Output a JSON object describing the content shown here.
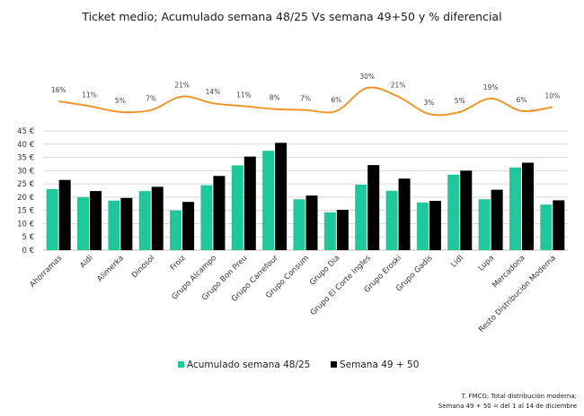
{
  "chart_data": {
    "type": "bar",
    "title": "Ticket medio; Acumulado semana 48/25 Vs semana 49+50 y % diferencial",
    "categories": [
      "Ahorramas",
      "Aldi",
      "Alimerka",
      "Dinosol",
      "Froiz",
      "Grupo Alcampo",
      "Grupo Bon Preu",
      "Grupo Carrefour",
      "Grupo Consum",
      "Grupo Dia",
      "Grupo El Corte Ingles",
      "Grupo Eroski",
      "Grupo Gadis",
      "Lidl",
      "Lupa",
      "Mercadona",
      "Resto Distribución Moderna"
    ],
    "series": [
      {
        "name": "Acumulado semana 48/25",
        "color": "#1fc79a",
        "values": [
          23.0,
          20.0,
          18.7,
          22.3,
          15.0,
          24.5,
          32.0,
          37.5,
          19.2,
          14.3,
          24.7,
          22.4,
          18.0,
          28.5,
          19.2,
          31.2,
          17.2
        ]
      },
      {
        "name": "Semana 49 + 50",
        "color": "#000000",
        "values": [
          26.5,
          22.3,
          19.7,
          23.9,
          18.2,
          28.0,
          35.3,
          40.5,
          20.6,
          15.2,
          32.1,
          27.0,
          18.6,
          30.0,
          22.8,
          33.0,
          18.8
        ]
      }
    ],
    "line_series": {
      "name": "% diferencial",
      "color": "#f0962a",
      "values": [
        16,
        11,
        5,
        7,
        21,
        14,
        11,
        8,
        7,
        6,
        30,
        21,
        3,
        5,
        19,
        6,
        10
      ],
      "labels": [
        "16%",
        "11%",
        "5%",
        "7%",
        "21%",
        "14%",
        "11%",
        "8%",
        "7%",
        "6%",
        "30%",
        "21%",
        "3%",
        "5%",
        "19%",
        "6%",
        "10%"
      ]
    },
    "ylim": [
      0,
      45
    ],
    "yticks": [
      0,
      5,
      10,
      15,
      20,
      25,
      30,
      35,
      40,
      45
    ],
    "ytick_labels": [
      "0 €",
      "5 €",
      "10 €",
      "15 €",
      "20 €",
      "25 €",
      "30 €",
      "35 €",
      "40 €",
      "45 €"
    ],
    "xlabel": "",
    "ylabel": "",
    "grid": true,
    "legend_position": "bottom"
  },
  "footnote": {
    "line1": "T. FMCG; Total distribución moderna;",
    "line2": "Semana 49 + 50 = del 1 al 14 de diciembre"
  }
}
